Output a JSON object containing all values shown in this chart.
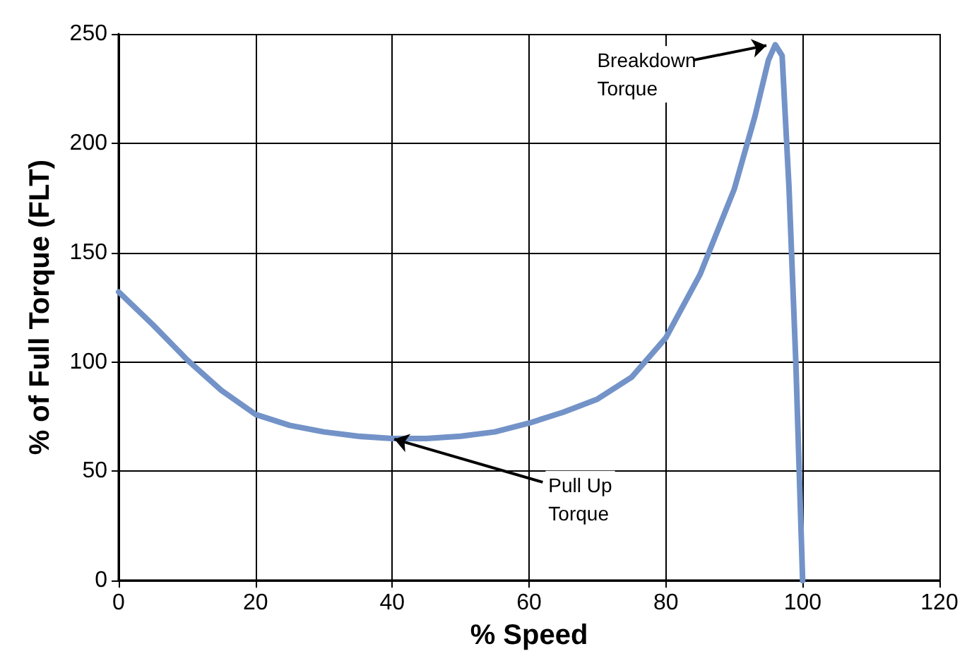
{
  "chart_data": {
    "type": "line",
    "xlabel": "% Speed",
    "ylabel": "% of Full Torque (FLT)",
    "x": [
      0,
      5,
      10,
      15,
      20,
      25,
      30,
      35,
      40,
      45,
      50,
      55,
      60,
      65,
      70,
      75,
      80,
      85,
      90,
      93,
      95,
      96,
      97,
      98,
      99,
      100
    ],
    "series": [
      {
        "color": "#7393c8",
        "values": [
          132,
          117,
          101,
          87,
          76,
          71,
          68,
          66,
          65,
          65,
          66,
          68,
          72,
          77,
          83,
          93,
          111,
          140,
          179,
          212,
          238,
          245,
          240,
          180,
          100,
          0
        ]
      }
    ],
    "xlim": [
      0,
      120
    ],
    "xticks": [
      0,
      20,
      40,
      60,
      80,
      100,
      120
    ],
    "ylim": [
      0,
      250
    ],
    "yticks": [
      0,
      50,
      100,
      150,
      200,
      250
    ],
    "grid": true,
    "marker": "none",
    "line_style": "solid",
    "annotations": [
      {
        "text": "Breakdown\nTorque",
        "x": 95,
        "y": 245
      },
      {
        "text": "Pull Up\nTorque",
        "x": 40,
        "y": 65
      }
    ]
  }
}
